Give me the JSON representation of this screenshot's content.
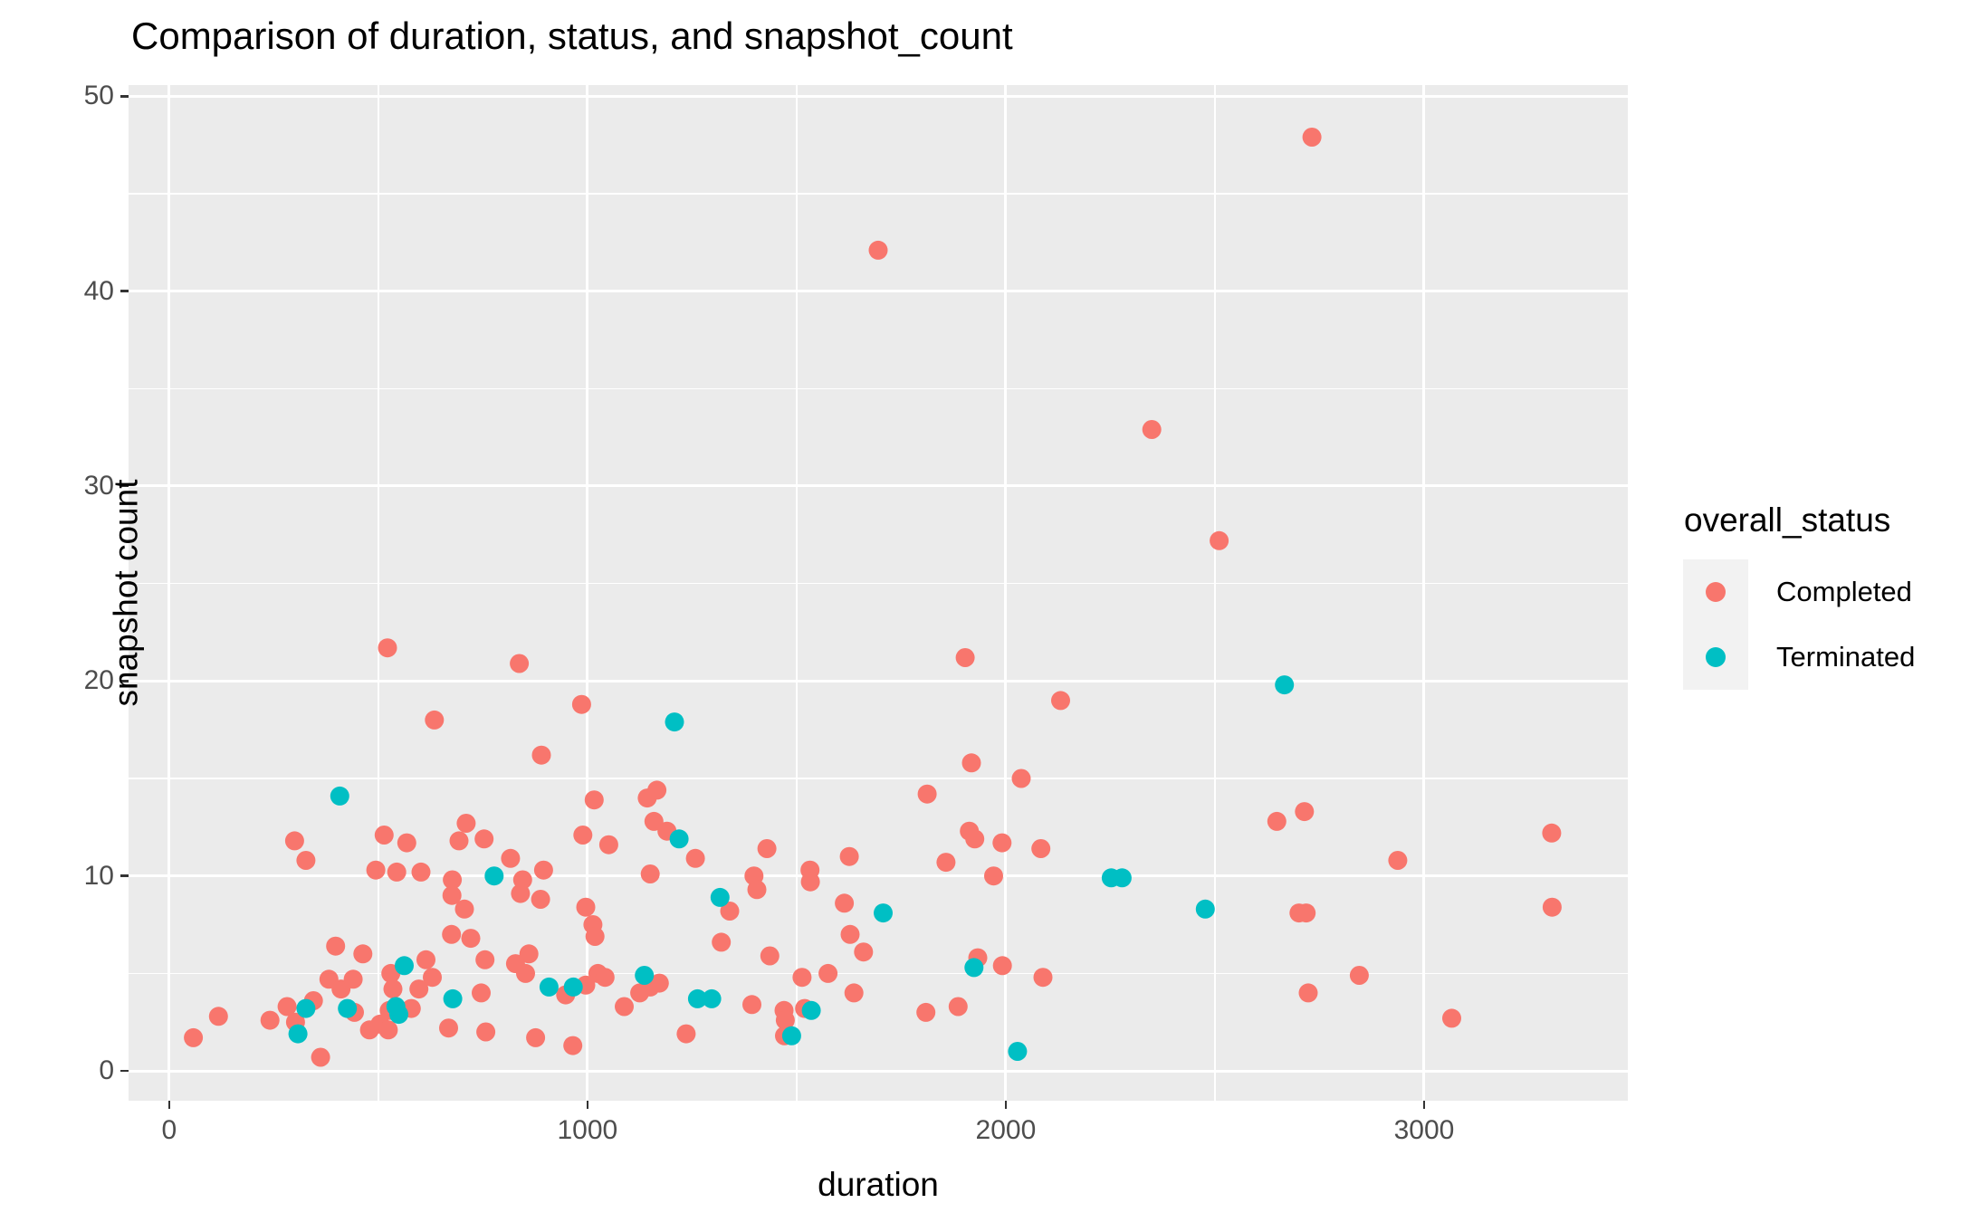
{
  "chart": {
    "title": "Comparison of duration, status, and snapshot_count",
    "xlabel": "duration",
    "ylabel": "snapshot count",
    "legend_title": "overall_status",
    "legend_items": [
      {
        "label": "Completed",
        "color": "#F8766D"
      },
      {
        "label": "Terminated",
        "color": "#00BFC4"
      }
    ]
  },
  "colors": {
    "panel_background": "#EBEBEB",
    "gridline": "#FFFFFF",
    "tick_text": "#4D4D4D",
    "axis_text": "#000000",
    "legend_key_background": "#F2F2F2",
    "completed": "#F8766D",
    "terminated": "#00BFC4"
  },
  "chart_data": {
    "type": "scatter",
    "title": "Comparison of duration, status, and snapshot_count",
    "xlabel": "duration",
    "ylabel": "snapshot count",
    "xlim": [
      -97,
      3487
    ],
    "ylim": [
      -1.53,
      50.57
    ],
    "x_ticks": [
      0,
      1000,
      2000,
      3000
    ],
    "y_ticks": [
      0,
      10,
      20,
      30,
      40,
      50
    ],
    "x_minor_gridlines": [
      500,
      1500,
      2500
    ],
    "y_minor_gridlines": [
      5,
      15,
      25,
      35,
      45
    ],
    "grid": true,
    "legend_position": "right",
    "point_radius_px": 10.5,
    "series": [
      {
        "name": "Completed",
        "color": "#F8766D",
        "points": [
          [
            2732,
            47.9
          ],
          [
            1695,
            42.1
          ],
          [
            2349,
            32.9
          ],
          [
            2510,
            27.2
          ],
          [
            522,
            21.7
          ],
          [
            1903,
            21.2
          ],
          [
            837,
            20.9
          ],
          [
            2131,
            19.0
          ],
          [
            986,
            18.8
          ],
          [
            634,
            18.0
          ],
          [
            890,
            16.2
          ],
          [
            1918,
            15.8
          ],
          [
            2037,
            15.0
          ],
          [
            1812,
            14.2
          ],
          [
            1016,
            13.9
          ],
          [
            1143,
            14.0
          ],
          [
            1166,
            14.4
          ],
          [
            2714,
            13.3
          ],
          [
            2648,
            12.8
          ],
          [
            710,
            12.7
          ],
          [
            300,
            11.8
          ],
          [
            327,
            10.8
          ],
          [
            514,
            12.1
          ],
          [
            568,
            11.7
          ],
          [
            693,
            11.8
          ],
          [
            753,
            11.9
          ],
          [
            989,
            12.1
          ],
          [
            1051,
            11.6
          ],
          [
            1159,
            12.8
          ],
          [
            1190,
            12.3
          ],
          [
            1913,
            12.3
          ],
          [
            1926,
            11.9
          ],
          [
            1991,
            11.7
          ],
          [
            2084,
            11.4
          ],
          [
            3305,
            12.2
          ],
          [
            494,
            10.3
          ],
          [
            544,
            10.2
          ],
          [
            602,
            10.2
          ],
          [
            816,
            10.9
          ],
          [
            677,
            9.8
          ],
          [
            676,
            9.0
          ],
          [
            845,
            9.8
          ],
          [
            840,
            9.1
          ],
          [
            895,
            10.3
          ],
          [
            888,
            8.8
          ],
          [
            1150,
            10.1
          ],
          [
            1258,
            10.9
          ],
          [
            1429,
            11.4
          ],
          [
            1398,
            10.0
          ],
          [
            1405,
            9.3
          ],
          [
            1532,
            10.3
          ],
          [
            1533,
            9.7
          ],
          [
            1626,
            11.0
          ],
          [
            1857,
            10.7
          ],
          [
            1971,
            10.0
          ],
          [
            2937,
            10.8
          ],
          [
            2701,
            8.1
          ],
          [
            2718,
            8.1
          ],
          [
            3306,
            8.4
          ],
          [
            1340,
            8.2
          ],
          [
            1614,
            8.6
          ],
          [
            1628,
            7.0
          ],
          [
            1660,
            6.1
          ],
          [
            1436,
            5.9
          ],
          [
            996,
            8.4
          ],
          [
            1013,
            7.5
          ],
          [
            1018,
            6.9
          ],
          [
            706,
            8.3
          ],
          [
            675,
            7.0
          ],
          [
            721,
            6.8
          ],
          [
            398,
            6.4
          ],
          [
            463,
            6.0
          ],
          [
            860,
            6.0
          ],
          [
            828,
            5.5
          ],
          [
            852,
            5.0
          ],
          [
            1320,
            6.6
          ],
          [
            614,
            5.7
          ],
          [
            755,
            5.7
          ],
          [
            530,
            5.0
          ],
          [
            629,
            4.8
          ],
          [
            382,
            4.7
          ],
          [
            411,
            4.2
          ],
          [
            440,
            4.7
          ],
          [
            597,
            4.2
          ],
          [
            535,
            4.2
          ],
          [
            1025,
            5.0
          ],
          [
            1042,
            4.8
          ],
          [
            1513,
            4.8
          ],
          [
            1575,
            5.0
          ],
          [
            1992,
            5.4
          ],
          [
            1933,
            5.8
          ],
          [
            2089,
            4.8
          ],
          [
            2845,
            4.9
          ],
          [
            1125,
            4.0
          ],
          [
            1150,
            4.3
          ],
          [
            1172,
            4.5
          ],
          [
            948,
            3.9
          ],
          [
            996,
            4.4
          ],
          [
            1637,
            4.0
          ],
          [
            2723,
            4.0
          ],
          [
            345,
            3.6
          ],
          [
            282,
            3.3
          ],
          [
            302,
            2.5
          ],
          [
            443,
            3.0
          ],
          [
            579,
            3.2
          ],
          [
            526,
            3.1
          ],
          [
            1088,
            3.3
          ],
          [
            1393,
            3.4
          ],
          [
            746,
            4.0
          ],
          [
            1470,
            3.1
          ],
          [
            1473,
            2.6
          ],
          [
            1519,
            3.2
          ],
          [
            1886,
            3.3
          ],
          [
            1809,
            3.0
          ],
          [
            3066,
            2.7
          ],
          [
            241,
            2.6
          ],
          [
            118,
            2.8
          ],
          [
            58,
            1.7
          ],
          [
            362,
            0.7
          ],
          [
            479,
            2.1
          ],
          [
            504,
            2.4
          ],
          [
            524,
            2.1
          ],
          [
            668,
            2.2
          ],
          [
            757,
            2.0
          ],
          [
            876,
            1.7
          ],
          [
            965,
            1.3
          ],
          [
            1236,
            1.9
          ],
          [
            1471,
            1.8
          ]
        ]
      },
      {
        "name": "Terminated",
        "color": "#00BFC4",
        "points": [
          [
            408,
            14.1
          ],
          [
            1208,
            17.9
          ],
          [
            2666,
            19.8
          ],
          [
            777,
            10.0
          ],
          [
            1219,
            11.9
          ],
          [
            2252,
            9.9
          ],
          [
            2278,
            9.9
          ],
          [
            1317,
            8.9
          ],
          [
            2477,
            8.3
          ],
          [
            1707,
            8.1
          ],
          [
            562,
            5.4
          ],
          [
            1924,
            5.3
          ],
          [
            1136,
            4.9
          ],
          [
            908,
            4.3
          ],
          [
            966,
            4.3
          ],
          [
            327,
            3.2
          ],
          [
            426,
            3.2
          ],
          [
            542,
            3.3
          ],
          [
            549,
            2.9
          ],
          [
            678,
            3.7
          ],
          [
            1263,
            3.7
          ],
          [
            1297,
            3.7
          ],
          [
            1535,
            3.1
          ],
          [
            1488,
            1.8
          ],
          [
            2028,
            1.0
          ],
          [
            308,
            1.9
          ]
        ]
      }
    ]
  }
}
